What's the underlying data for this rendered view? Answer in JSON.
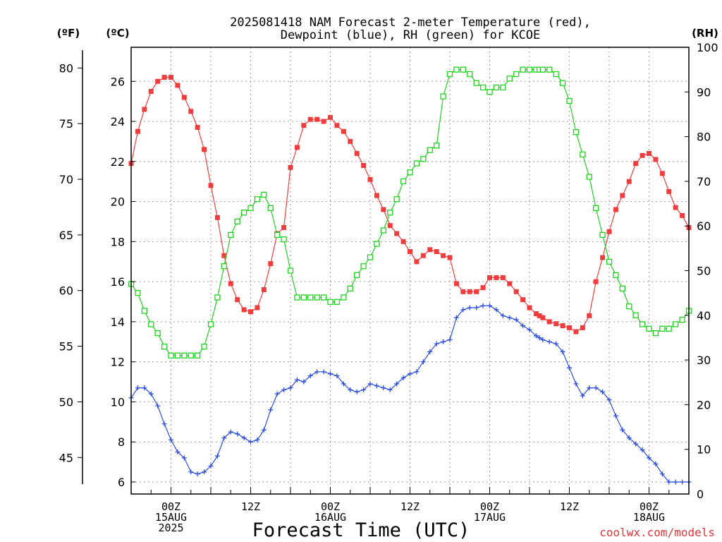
{
  "chart_data": {
    "type": "line",
    "title_lines": [
      "2025081418 NAM Forecast 2-meter Temperature (red),",
      "Dewpoint (blue), RH (green) for KCOE"
    ],
    "units": {
      "left_f": "(ºF)",
      "left_c": "(ºC)",
      "right": "(RH)"
    },
    "xlabel": "Forecast Time (UTC)",
    "credit": "coolwx.com/models",
    "xlim": [
      0,
      84
    ],
    "ylim_c": [
      5.4,
      27.7
    ],
    "ylim_rh": [
      0,
      100
    ],
    "fahrenheit_ticks": [
      "45",
      "50",
      "55",
      "60",
      "65",
      "70",
      "75",
      "80"
    ],
    "celsius_ticks": [
      "6",
      "8",
      "10",
      "12",
      "14",
      "16",
      "18",
      "20",
      "22",
      "24",
      "26"
    ],
    "rh_ticks": [
      "0",
      "10",
      "20",
      "30",
      "40",
      "50",
      "60",
      "70",
      "80",
      "90",
      "100"
    ],
    "x_ticks": [
      {
        "x": 6,
        "lines": [
          "00Z",
          "15AUG",
          "2025"
        ]
      },
      {
        "x": 18,
        "lines": [
          "12Z"
        ]
      },
      {
        "x": 30,
        "lines": [
          "00Z",
          "16AUG"
        ]
      },
      {
        "x": 42,
        "lines": [
          "12Z"
        ]
      },
      {
        "x": 54,
        "lines": [
          "00Z",
          "17AUG"
        ]
      },
      {
        "x": 66,
        "lines": [
          "12Z"
        ]
      },
      {
        "x": 78,
        "lines": [
          "00Z",
          "18AUG"
        ]
      }
    ],
    "grid": true,
    "x_hours": [
      0,
      1,
      2,
      3,
      4,
      5,
      6,
      7,
      8,
      9,
      10,
      11,
      12,
      13,
      14,
      15,
      16,
      17,
      18,
      19,
      20,
      21,
      22,
      23,
      24,
      25,
      26,
      27,
      28,
      29,
      30,
      31,
      32,
      33,
      34,
      35,
      36,
      37,
      38,
      39,
      40,
      41,
      42,
      43,
      44,
      45,
      46,
      47,
      48,
      49,
      50,
      51,
      52,
      53,
      54,
      55,
      56,
      57,
      58,
      59,
      60,
      61,
      61.5,
      62,
      63,
      64,
      65,
      66,
      67,
      68,
      69,
      70,
      71,
      72,
      73,
      74,
      75,
      76,
      77,
      78,
      79,
      80,
      81,
      82,
      83,
      84
    ],
    "series": [
      {
        "name": "2-meter Temperature",
        "units": "°C",
        "color": "#f03c3c",
        "marker": "filled-square",
        "values": [
          21.9,
          23.5,
          24.6,
          25.5,
          26.0,
          26.2,
          26.2,
          25.8,
          25.2,
          24.5,
          23.7,
          22.6,
          20.8,
          19.2,
          17.3,
          15.9,
          15.1,
          14.6,
          14.5,
          14.7,
          15.6,
          16.9,
          18.4,
          18.7,
          21.7,
          22.7,
          23.8,
          24.1,
          24.1,
          24.0,
          24.2,
          23.8,
          23.5,
          23.0,
          22.4,
          21.8,
          21.1,
          20.3,
          19.6,
          18.8,
          18.4,
          18.0,
          17.5,
          17.0,
          17.3,
          17.6,
          17.5,
          17.3,
          17.2,
          15.9,
          15.5,
          15.5,
          15.5,
          15.7,
          16.2,
          16.2,
          16.2,
          15.9,
          15.5,
          15.1,
          14.7,
          14.4,
          14.3,
          14.2,
          14.0,
          13.9,
          13.8,
          13.7,
          13.5,
          13.7,
          14.3,
          16.0,
          17.2,
          18.5,
          19.6,
          20.3,
          21.0,
          21.9,
          22.3,
          22.4,
          22.1,
          21.4,
          20.5,
          19.7,
          19.3,
          18.7
        ]
      },
      {
        "name": "Dewpoint",
        "units": "°C",
        "color": "#2b4de0",
        "marker": "plus",
        "values": [
          10.2,
          10.7,
          10.7,
          10.4,
          9.8,
          8.9,
          8.1,
          7.5,
          7.2,
          6.5,
          6.4,
          6.5,
          6.8,
          7.3,
          8.2,
          8.5,
          8.4,
          8.2,
          8.0,
          8.1,
          8.6,
          9.6,
          10.4,
          10.6,
          10.7,
          11.1,
          11.0,
          11.3,
          11.5,
          11.5,
          11.4,
          11.3,
          10.9,
          10.6,
          10.5,
          10.6,
          10.9,
          10.8,
          10.7,
          10.6,
          10.9,
          11.2,
          11.4,
          11.5,
          12.0,
          12.5,
          12.9,
          13.0,
          13.1,
          14.2,
          14.6,
          14.7,
          14.7,
          14.8,
          14.8,
          14.6,
          14.3,
          14.2,
          14.1,
          13.8,
          13.6,
          13.3,
          13.2,
          13.1,
          13.0,
          12.9,
          12.5,
          11.7,
          10.9,
          10.3,
          10.7,
          10.7,
          10.5,
          10.1,
          9.3,
          8.6,
          8.2,
          7.9,
          7.6,
          7.2,
          6.9,
          6.4,
          6.0,
          6.0,
          6.0,
          6.0
        ]
      },
      {
        "name": "RH",
        "units": "%",
        "color": "#1ed21e",
        "marker": "open-square",
        "values": [
          47,
          45,
          41,
          38,
          36,
          33,
          31,
          31,
          31,
          31,
          31,
          33,
          38,
          44,
          51,
          58,
          61,
          63,
          64,
          66,
          67,
          64,
          58,
          57,
          50,
          44,
          44,
          44,
          44,
          44,
          43,
          43,
          44,
          46,
          49,
          51,
          53,
          56,
          59,
          63,
          66,
          70,
          72,
          74,
          75,
          77,
          78,
          89,
          94,
          95,
          95,
          94,
          92,
          91,
          90,
          91,
          91,
          93,
          94,
          95,
          95,
          95,
          95,
          95,
          95,
          94,
          92,
          88,
          81,
          76,
          71,
          64,
          58,
          52,
          49,
          46,
          42,
          40,
          38,
          37,
          36,
          37,
          37,
          38,
          39,
          41
        ]
      }
    ]
  }
}
